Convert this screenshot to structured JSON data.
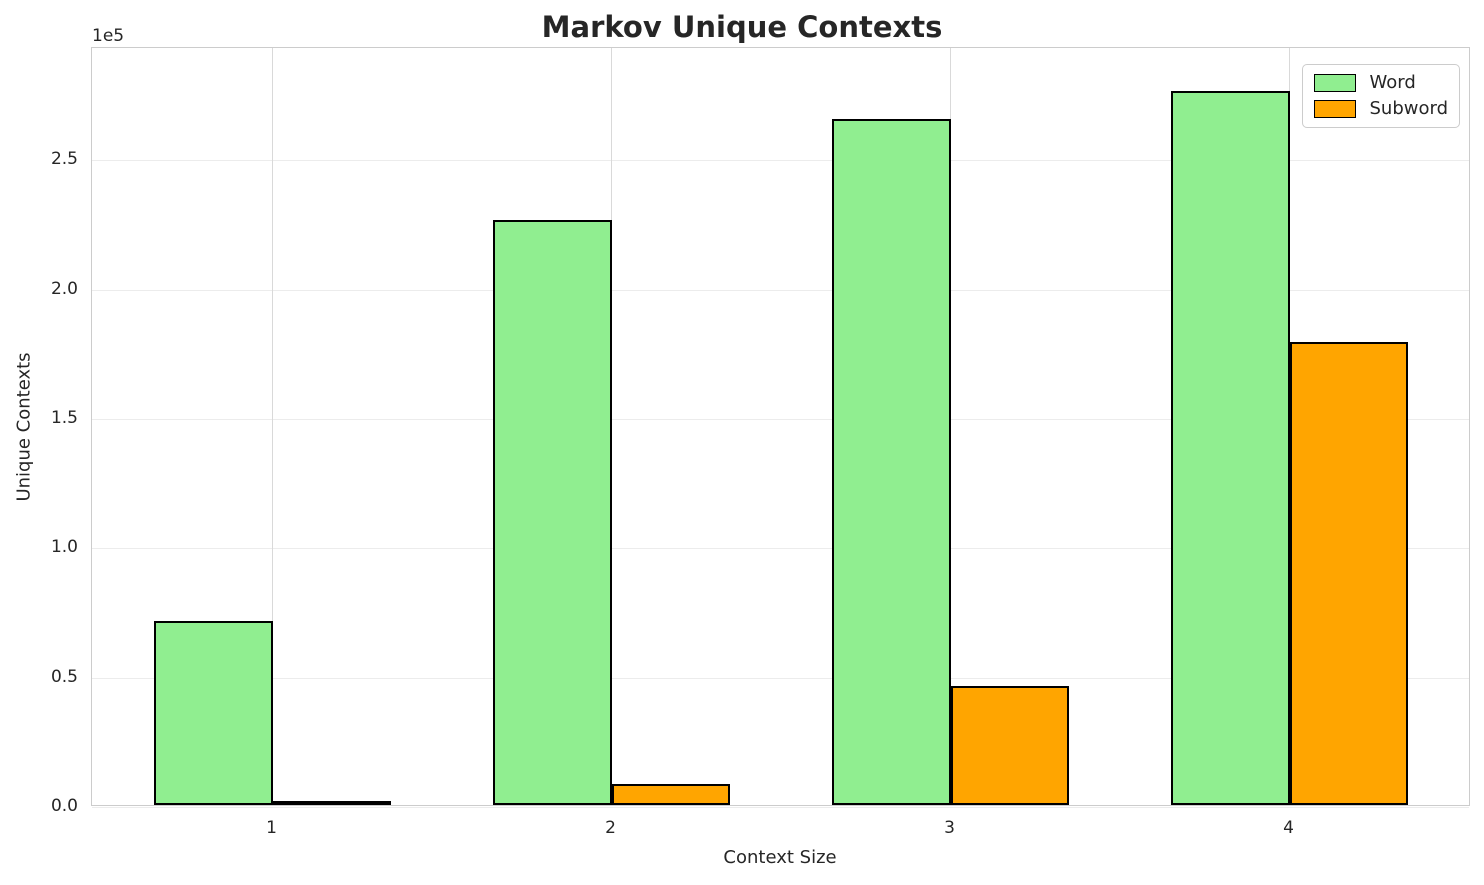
{
  "chart_data": {
    "type": "bar",
    "title": "Markov Unique Contexts",
    "xlabel": "Context Size",
    "ylabel": "Unique Contexts",
    "offset_label": "1e5",
    "categories": [
      "1",
      "2",
      "3",
      "4"
    ],
    "series": [
      {
        "name": "Word",
        "color": "#90EE90",
        "values": [
          71000,
          226000,
          265000,
          276000
        ]
      },
      {
        "name": "Subword",
        "color": "#FFA500",
        "values": [
          1000,
          8000,
          46000,
          179000
        ]
      }
    ],
    "bar_edge_color": "#000000",
    "ylim": [
      0,
      293400
    ],
    "yticks": {
      "values": [
        0,
        50000,
        100000,
        150000,
        200000,
        250000
      ],
      "labels": [
        "0.0",
        "0.5",
        "1.0",
        "1.5",
        "2.0",
        "2.5"
      ]
    },
    "grid": true,
    "legend_position": "upper right",
    "text_color": "#262626"
  }
}
